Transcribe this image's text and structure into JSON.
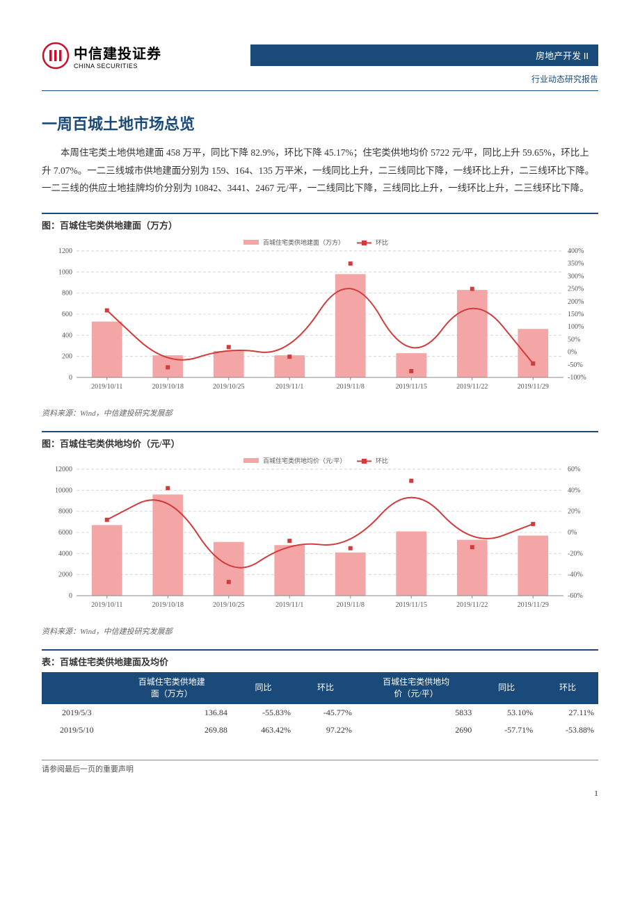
{
  "header": {
    "logo_cn": "中信建投证券",
    "logo_en": "CHINA SECURITIES",
    "bar_label": "房地产开发 II",
    "sub_label": "行业动态研究报告",
    "bar_color": "#1a4a7a",
    "logo_red": "#c8102e"
  },
  "title": "一周百城土地市场总览",
  "paragraph": "本周住宅类土地供地建面 458 万平，同比下降 82.9%，环比下降 45.17%；住宅类供地均价 5722 元/平，同比上升 59.65%，环比上升 7.07%。一二三线城市供地建面分别为 159、164、135 万平米，一线同比上升，二三线同比下降，一线环比上升，二三线环比下降。一二三线的供应土地挂牌均价分别为 10842、3441、2467 元/平，一二线同比下降，三线同比上升，一线环比上升，二三线环比下降。",
  "chart1": {
    "title": "图：百城住宅类供地建面（万方）",
    "type": "bar+line",
    "legend_bar": "百城住宅类供地建面（万方）",
    "legend_line": "环比",
    "categories": [
      "2019/10/11",
      "2019/10/18",
      "2019/10/25",
      "2019/11/1",
      "2019/11/8",
      "2019/11/15",
      "2019/11/22",
      "2019/11/29"
    ],
    "bar_values": [
      530,
      210,
      250,
      210,
      980,
      230,
      830,
      460
    ],
    "line_values_pct": [
      165,
      -60,
      20,
      -18,
      350,
      -75,
      250,
      -45
    ],
    "y1_min": 0,
    "y1_max": 1200,
    "y1_step": 200,
    "y2_min": -100,
    "y2_max": 400,
    "y2_step": 50,
    "bar_color": "#f4a6a6",
    "line_color": "#d23b3b",
    "grid_color": "#cfcfcf",
    "axis_color": "#888888",
    "bg": "#ffffff",
    "label_font": 10,
    "source": "资料来源：Wind，中信建投研究发展部"
  },
  "chart2": {
    "title": "图：百城住宅类供地均价（元/平）",
    "type": "bar+line",
    "legend_bar": "百城住宅类供地均价（元/平）",
    "legend_line": "环比",
    "categories": [
      "2019/10/11",
      "2019/10/18",
      "2019/10/25",
      "2019/11/1",
      "2019/11/8",
      "2019/11/15",
      "2019/11/22",
      "2019/11/29"
    ],
    "bar_values": [
      6700,
      9600,
      5100,
      4800,
      4100,
      6100,
      5300,
      5700
    ],
    "line_values_pct": [
      12,
      42,
      -47,
      -8,
      -15,
      49,
      -14,
      8
    ],
    "y1_min": 0,
    "y1_max": 12000,
    "y1_step": 2000,
    "y2_min": -60,
    "y2_max": 60,
    "y2_step": 20,
    "bar_color": "#f4a6a6",
    "line_color": "#d23b3b",
    "grid_color": "#cfcfcf",
    "axis_color": "#888888",
    "bg": "#ffffff",
    "label_font": 10,
    "source": "资料来源：Wind，中信建投研究发展部"
  },
  "table": {
    "title": "表：百城住宅类供地建面及均价",
    "columns": [
      "",
      "百城住宅类供地建\n面（万方）",
      "同比",
      "环比",
      "百城住宅类供地均\n价（元/平）",
      "同比",
      "环比"
    ],
    "rows": [
      [
        "2019/5/3",
        "136.84",
        "-55.83%",
        "-45.77%",
        "5833",
        "53.10%",
        "27.11%"
      ],
      [
        "2019/5/10",
        "269.88",
        "463.42%",
        "97.22%",
        "2690",
        "-57.71%",
        "-53.88%"
      ]
    ],
    "header_bg": "#1a4a7a",
    "header_fg": "#ffffff"
  },
  "footer": {
    "disclaimer": "请参阅最后一页的重要声明",
    "page_num": "1"
  }
}
